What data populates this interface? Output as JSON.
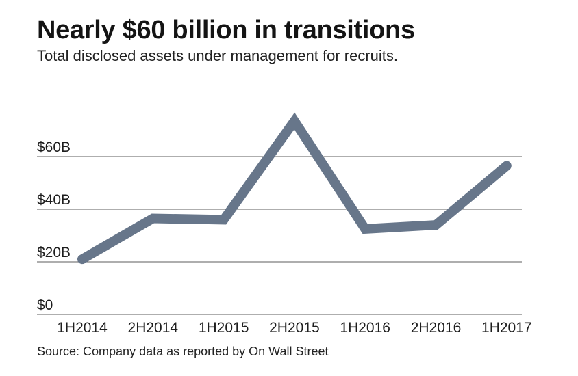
{
  "title": "Nearly $60 billion in transitions",
  "subtitle": "Total disclosed assets under management for recruits.",
  "source": "Source: Company data as reported by On Wall Street",
  "colors": {
    "line": "#67768a",
    "grid": "#5c5c5c",
    "text": "#1a1a1a"
  },
  "chart_data": {
    "type": "line",
    "categories": [
      "1H2014",
      "2H2014",
      "1H2015",
      "2H2015",
      "1H2016",
      "2H2016",
      "1H2017"
    ],
    "series": [
      {
        "values": [
          21,
          36.5,
          36,
          73.5,
          32.5,
          34,
          56.5
        ]
      }
    ],
    "title": "Nearly $60 billion in transitions",
    "subtitle": "Total disclosed assets under management for recruits.",
    "ylim": [
      0,
      80
    ],
    "yticks": [
      0,
      20,
      40,
      60
    ],
    "ytick_labels": [
      "$0",
      "$20B",
      "$40B",
      "$60B"
    ],
    "grid": true,
    "legend": "none"
  }
}
